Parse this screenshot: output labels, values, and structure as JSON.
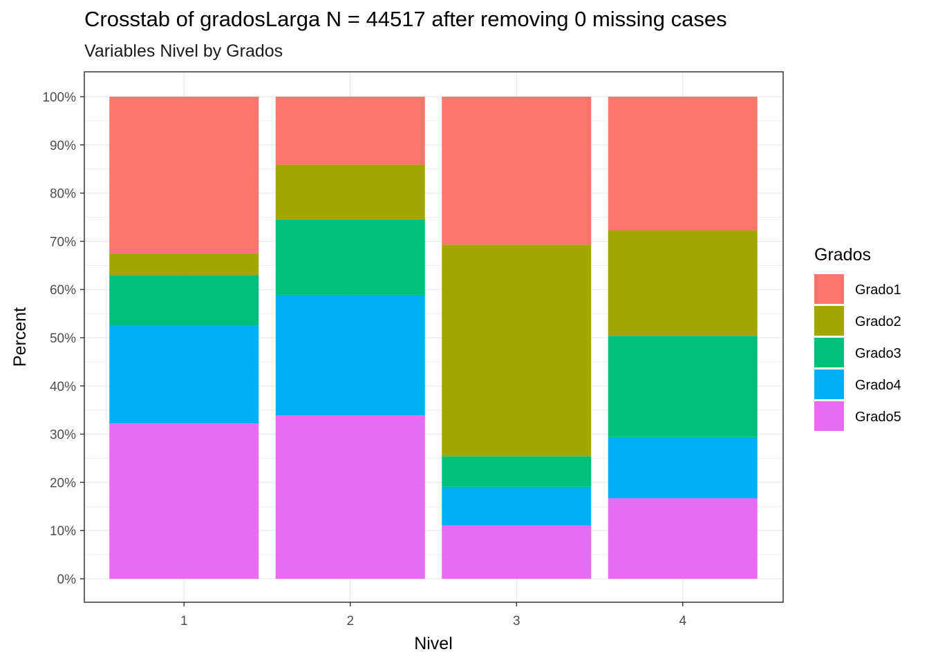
{
  "chart_data": {
    "type": "bar",
    "stacked": true,
    "title": "Crosstab of gradosLarga N = 44517 after removing 0 missing cases",
    "subtitle": "Variables Nivel by Grados",
    "xlabel": "Nivel",
    "ylabel": "Percent",
    "categories": [
      "1",
      "2",
      "3",
      "4"
    ],
    "ylim": [
      0,
      100
    ],
    "y_ticks": [
      "0%",
      "10%",
      "20%",
      "30%",
      "40%",
      "50%",
      "60%",
      "70%",
      "80%",
      "90%",
      "100%"
    ],
    "legend_title": "Grados",
    "legend_position": "right",
    "grid": true,
    "series": [
      {
        "name": "Grado1",
        "color": "#F8766D",
        "values": [
          32.5,
          14.1,
          30.7,
          27.7
        ]
      },
      {
        "name": "Grado2",
        "color": "#A3A500",
        "values": [
          4.5,
          11.4,
          43.9,
          21.9
        ]
      },
      {
        "name": "Grado3",
        "color": "#00BF7D",
        "values": [
          10.5,
          15.6,
          6.3,
          21.0
        ]
      },
      {
        "name": "Grado4",
        "color": "#00B0F6",
        "values": [
          20.3,
          25.0,
          8.0,
          12.7
        ]
      },
      {
        "name": "Grado5",
        "color": "#E76BF3",
        "values": [
          32.2,
          33.9,
          11.1,
          16.7
        ]
      }
    ]
  }
}
